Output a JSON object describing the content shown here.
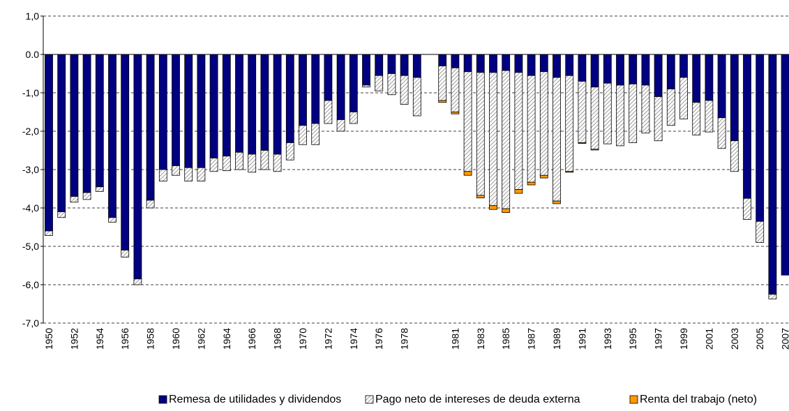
{
  "chart_data": {
    "type": "stacked_bar",
    "categories": [
      "1950",
      null,
      "1952",
      null,
      "1954",
      null,
      "1956",
      null,
      "1958",
      null,
      "1960",
      null,
      "1962",
      null,
      "1964",
      null,
      "1966",
      null,
      "1968",
      null,
      "1970",
      null,
      "1972",
      null,
      "1974",
      null,
      "1976",
      null,
      "1978",
      null,
      null,
      null,
      "1981",
      null,
      "1983",
      null,
      "1985",
      null,
      "1987",
      null,
      "1989",
      null,
      "1991",
      null,
      "1993",
      null,
      "1995",
      null,
      "1997",
      null,
      "1999",
      null,
      "2001",
      null,
      "2003",
      null,
      "2005",
      null,
      "2007"
    ],
    "series": [
      {
        "name": "Remesa de utilidades y dividendos",
        "color": "#000080",
        "pattern": "solid",
        "values": [
          -4.6,
          -4.1,
          -3.7,
          -3.6,
          -3.45,
          -4.25,
          -5.1,
          -5.85,
          -3.8,
          -3.0,
          -2.9,
          -2.95,
          -2.95,
          -2.7,
          -2.65,
          -2.55,
          -2.6,
          -2.5,
          -2.6,
          -2.3,
          -1.85,
          -1.8,
          -1.2,
          -1.7,
          -1.5,
          -0.8,
          -0.55,
          -0.5,
          -0.55,
          -0.6,
          null,
          -0.3,
          -0.35,
          -0.45,
          -0.47,
          -0.47,
          -0.42,
          -0.47,
          -0.55,
          -0.45,
          -0.6,
          -0.55,
          -0.7,
          -0.85,
          -0.75,
          -0.8,
          -0.77,
          -0.8,
          -1.1,
          -0.9,
          -0.6,
          -1.25,
          -1.2,
          -1.65,
          -2.25,
          -3.75,
          -4.35,
          -6.25,
          -5.75
        ]
      },
      {
        "name": "Pago neto de intereses de deuda externa",
        "color": "#999999",
        "pattern": "hatch",
        "values": [
          -0.12,
          -0.15,
          -0.15,
          -0.18,
          -0.12,
          -0.12,
          -0.18,
          -0.15,
          -0.2,
          -0.3,
          -0.25,
          -0.35,
          -0.35,
          -0.35,
          -0.38,
          -0.45,
          -0.47,
          -0.5,
          -0.45,
          -0.45,
          -0.5,
          -0.55,
          -0.6,
          -0.3,
          -0.3,
          -0.05,
          -0.4,
          -0.55,
          -0.75,
          -1.0,
          null,
          -0.9,
          -1.15,
          -2.6,
          -3.2,
          -3.47,
          -3.6,
          -3.05,
          -2.78,
          -2.7,
          -3.22,
          -2.5,
          -1.6,
          -1.62,
          -1.58,
          -1.58,
          -1.53,
          -1.25,
          -1.15,
          -0.95,
          -1.08,
          -0.85,
          -0.82,
          -0.8,
          -0.8,
          -0.55,
          -0.55,
          -0.12,
          0
        ]
      },
      {
        "name": "Renta del trabajo (neto)",
        "color": "#ff9900",
        "pattern": "solid",
        "values": [
          0,
          0,
          0,
          0,
          0,
          0,
          0,
          0,
          0,
          0,
          0,
          0,
          0,
          0,
          0,
          0,
          0,
          0,
          0,
          0,
          0,
          0,
          0,
          0,
          0,
          0,
          0,
          0,
          0,
          0,
          null,
          -0.05,
          -0.05,
          -0.1,
          -0.07,
          -0.1,
          -0.1,
          -0.1,
          -0.07,
          -0.07,
          -0.07,
          -0.02,
          -0.02,
          -0.02,
          0,
          0,
          0,
          0,
          0,
          0,
          0,
          0,
          0,
          0,
          0,
          0,
          0,
          0,
          0
        ]
      }
    ],
    "ylim": [
      -7,
      1
    ],
    "yticks": [
      {
        "value": 1,
        "label": "1,0"
      },
      {
        "value": 0,
        "label": "0.0"
      },
      {
        "value": -1,
        "label": "-1,0"
      },
      {
        "value": -2,
        "label": "-2,0"
      },
      {
        "value": -3,
        "label": "-3,0"
      },
      {
        "value": -4,
        "label": "-4,0"
      },
      {
        "value": -5,
        "label": "-5,0"
      },
      {
        "value": -6,
        "label": "-6,0"
      },
      {
        "value": -7,
        "label": "-7,0"
      }
    ],
    "grid": true,
    "legend": "bottom"
  }
}
